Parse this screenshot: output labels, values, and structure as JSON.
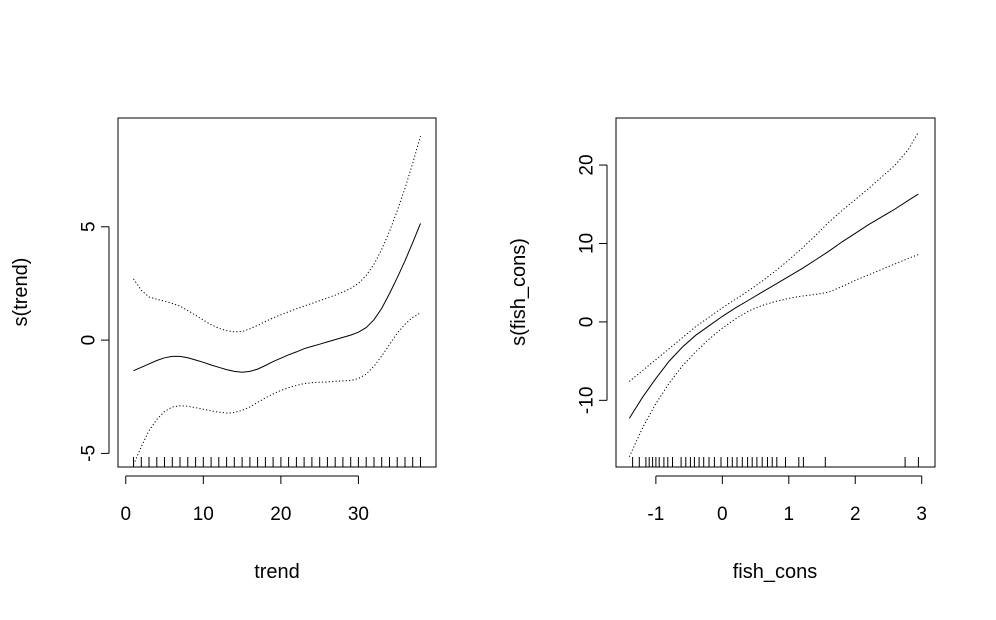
{
  "chart_data": [
    {
      "type": "line",
      "title": "",
      "xlabel": "trend",
      "ylabel": "s(trend)",
      "xlim": [
        -1,
        40
      ],
      "ylim": [
        -5.6,
        9.8
      ],
      "xticks": [
        0,
        10,
        20,
        30
      ],
      "xtick_labels": [
        "0",
        "10",
        "20",
        "30"
      ],
      "yticks": [
        -5,
        0,
        5
      ],
      "ytick_labels": [
        "-5",
        "0",
        "5"
      ],
      "grid": false,
      "legend": "none",
      "series": [
        {
          "style": "solid",
          "x": [
            1,
            2,
            3,
            4,
            5,
            6,
            7,
            8,
            9,
            10,
            11,
            12,
            13,
            14,
            15,
            16,
            17,
            18,
            19,
            20,
            21,
            22,
            23,
            24,
            25,
            26,
            27,
            28,
            29,
            30,
            31,
            32,
            33,
            34,
            35,
            36,
            37,
            38
          ],
          "values": [
            -1.35,
            -1.2,
            -1.05,
            -0.9,
            -0.78,
            -0.72,
            -0.72,
            -0.78,
            -0.88,
            -0.98,
            -1.1,
            -1.2,
            -1.3,
            -1.38,
            -1.42,
            -1.38,
            -1.28,
            -1.12,
            -0.95,
            -0.8,
            -0.65,
            -0.52,
            -0.38,
            -0.28,
            -0.18,
            -0.08,
            0.02,
            0.12,
            0.22,
            0.35,
            0.55,
            0.9,
            1.4,
            2.05,
            2.75,
            3.5,
            4.3,
            5.15
          ]
        },
        {
          "style": "dotted",
          "x": [
            1,
            2,
            3,
            4,
            5,
            6,
            7,
            8,
            9,
            10,
            11,
            12,
            13,
            14,
            15,
            16,
            17,
            18,
            19,
            20,
            21,
            22,
            23,
            24,
            25,
            26,
            27,
            28,
            29,
            30,
            31,
            32,
            33,
            34,
            35,
            36,
            37,
            38
          ],
          "values": [
            2.7,
            2.2,
            1.9,
            1.8,
            1.72,
            1.62,
            1.5,
            1.3,
            1.1,
            0.88,
            0.68,
            0.52,
            0.42,
            0.36,
            0.38,
            0.5,
            0.65,
            0.82,
            0.98,
            1.12,
            1.25,
            1.38,
            1.5,
            1.62,
            1.74,
            1.86,
            1.98,
            2.12,
            2.28,
            2.5,
            2.85,
            3.35,
            4.0,
            4.8,
            5.7,
            6.7,
            7.8,
            9.0
          ]
        },
        {
          "style": "dotted",
          "x": [
            1,
            2,
            3,
            4,
            5,
            6,
            7,
            8,
            9,
            10,
            11,
            12,
            13,
            14,
            15,
            16,
            17,
            18,
            19,
            20,
            21,
            22,
            23,
            24,
            25,
            26,
            27,
            28,
            29,
            30,
            31,
            32,
            33,
            34,
            35,
            36,
            37,
            38
          ],
          "values": [
            -5.5,
            -4.7,
            -4.0,
            -3.5,
            -3.15,
            -2.95,
            -2.9,
            -2.92,
            -2.98,
            -3.05,
            -3.12,
            -3.18,
            -3.22,
            -3.2,
            -3.1,
            -2.95,
            -2.75,
            -2.55,
            -2.38,
            -2.22,
            -2.1,
            -2.0,
            -1.92,
            -1.88,
            -1.86,
            -1.85,
            -1.82,
            -1.8,
            -1.78,
            -1.7,
            -1.5,
            -1.15,
            -0.7,
            -0.2,
            0.3,
            0.7,
            1.0,
            1.2
          ]
        }
      ],
      "rug": [
        1,
        2,
        3,
        4,
        5,
        6,
        7,
        8,
        9,
        10,
        11,
        12,
        13,
        14,
        15,
        16,
        17,
        18,
        19,
        20,
        21,
        22,
        23,
        24,
        25,
        26,
        27,
        28,
        29,
        30,
        31,
        32,
        33,
        34,
        35,
        36,
        37,
        38
      ]
    },
    {
      "type": "line",
      "title": "",
      "xlabel": "fish_cons",
      "ylabel": "s(fish_cons)",
      "xlim": [
        -1.6,
        3.2
      ],
      "ylim": [
        -18.5,
        26.0
      ],
      "xticks": [
        -1,
        0,
        1,
        2,
        3
      ],
      "xtick_labels": [
        "-1",
        "0",
        "1",
        "2",
        "3"
      ],
      "yticks": [
        -10,
        0,
        10,
        20
      ],
      "ytick_labels": [
        "-10",
        "0",
        "10",
        "20"
      ],
      "grid": false,
      "legend": "none",
      "series": [
        {
          "style": "solid",
          "x": [
            -1.4,
            -1.2,
            -1.0,
            -0.8,
            -0.6,
            -0.4,
            -0.2,
            0.0,
            0.2,
            0.4,
            0.6,
            0.8,
            1.0,
            1.2,
            1.4,
            1.6,
            1.8,
            2.0,
            2.2,
            2.4,
            2.6,
            2.8,
            2.95
          ],
          "values": [
            -12.3,
            -9.6,
            -7.2,
            -5.0,
            -3.2,
            -1.7,
            -0.5,
            0.7,
            1.8,
            2.8,
            3.8,
            4.8,
            5.8,
            6.8,
            7.9,
            9.0,
            10.2,
            11.3,
            12.4,
            13.4,
            14.4,
            15.5,
            16.3
          ]
        },
        {
          "style": "dotted",
          "x": [
            -1.4,
            -1.2,
            -1.0,
            -0.8,
            -0.6,
            -0.4,
            -0.2,
            0.0,
            0.2,
            0.4,
            0.6,
            0.8,
            1.0,
            1.2,
            1.4,
            1.6,
            1.8,
            2.0,
            2.2,
            2.4,
            2.6,
            2.8,
            2.95
          ],
          "values": [
            -7.6,
            -6.2,
            -4.8,
            -3.4,
            -2.0,
            -0.6,
            0.6,
            1.8,
            2.9,
            4.0,
            5.2,
            6.5,
            7.9,
            9.4,
            11.0,
            12.7,
            14.2,
            15.6,
            17.0,
            18.5,
            20.0,
            22.0,
            24.2
          ]
        },
        {
          "style": "dotted",
          "x": [
            -1.4,
            -1.2,
            -1.0,
            -0.8,
            -0.6,
            -0.4,
            -0.2,
            0.0,
            0.2,
            0.4,
            0.6,
            0.8,
            1.0,
            1.2,
            1.4,
            1.6,
            1.8,
            2.0,
            2.2,
            2.4,
            2.6,
            2.8,
            2.95
          ],
          "values": [
            -17.2,
            -13.5,
            -10.4,
            -7.8,
            -5.6,
            -3.8,
            -2.2,
            -0.8,
            0.4,
            1.4,
            2.1,
            2.6,
            3.0,
            3.3,
            3.5,
            3.8,
            4.5,
            5.3,
            6.0,
            6.7,
            7.4,
            8.1,
            8.6
          ]
        }
      ],
      "rug": [
        -1.35,
        -1.25,
        -1.15,
        -1.1,
        -1.05,
        -1.0,
        -0.95,
        -0.88,
        -0.82,
        -0.75,
        -0.62,
        -0.55,
        -0.48,
        -0.42,
        -0.35,
        -0.28,
        -0.2,
        -0.12,
        -0.02,
        0.08,
        0.15,
        0.22,
        0.3,
        0.38,
        0.45,
        0.52,
        0.6,
        0.68,
        0.75,
        0.82,
        0.95,
        1.15,
        1.22,
        1.55,
        2.75,
        2.95
      ]
    }
  ]
}
